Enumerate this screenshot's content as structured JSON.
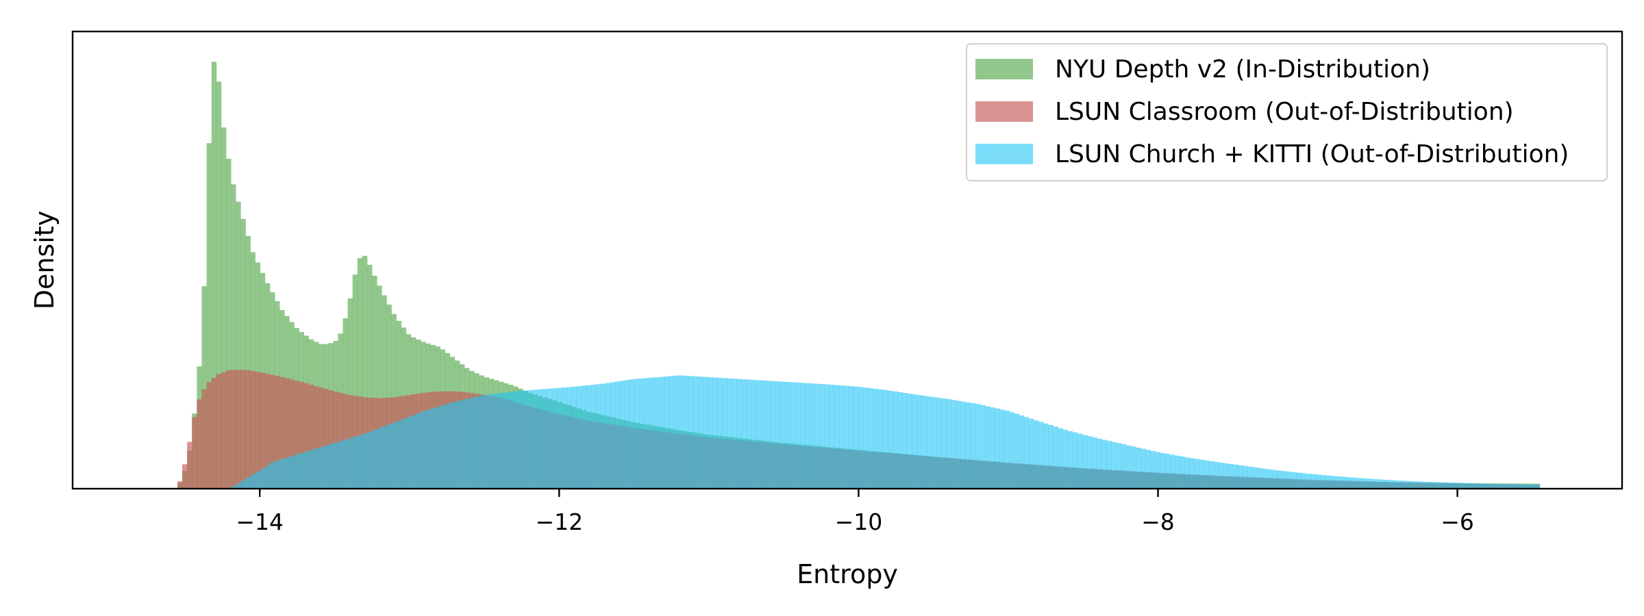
{
  "chart_data": {
    "type": "histogram",
    "title": "",
    "xlabel": "Entropy",
    "ylabel": "Density",
    "xlim": [
      -15.25,
      -4.9
    ],
    "ylim": [
      0,
      1.0
    ],
    "y_ticks_shown": false,
    "grid": false,
    "legend_placement": "top-right",
    "xticks": [
      -14,
      -12,
      -10,
      -8,
      -6
    ],
    "xtick_labels": [
      "−14",
      "−12",
      "−10",
      "−8",
      "−6"
    ],
    "bin_range": [
      -14.55,
      -5.45
    ],
    "series": [
      {
        "name": "NYU Depth v2 (In-Distribution)",
        "color": "#5aaa50",
        "opacity": 0.66,
        "density_curve": [
          [
            -14.55,
            0.0
          ],
          [
            -14.5,
            0.04
          ],
          [
            -14.47,
            0.08
          ],
          [
            -14.43,
            0.18
          ],
          [
            -14.4,
            0.28
          ],
          [
            -14.37,
            0.45
          ],
          [
            -14.35,
            0.66
          ],
          [
            -14.33,
            0.83
          ],
          [
            -14.31,
            0.93
          ],
          [
            -14.29,
            0.95
          ],
          [
            -14.26,
            0.84
          ],
          [
            -14.23,
            0.76
          ],
          [
            -14.18,
            0.67
          ],
          [
            -14.12,
            0.6
          ],
          [
            -14.05,
            0.52
          ],
          [
            -13.95,
            0.45
          ],
          [
            -13.85,
            0.39
          ],
          [
            -13.75,
            0.35
          ],
          [
            -13.65,
            0.325
          ],
          [
            -13.58,
            0.315
          ],
          [
            -13.5,
            0.32
          ],
          [
            -13.45,
            0.345
          ],
          [
            -13.4,
            0.41
          ],
          [
            -13.37,
            0.46
          ],
          [
            -13.34,
            0.5
          ],
          [
            -13.31,
            0.515
          ],
          [
            -13.28,
            0.5
          ],
          [
            -13.24,
            0.47
          ],
          [
            -13.18,
            0.43
          ],
          [
            -13.1,
            0.38
          ],
          [
            -13.0,
            0.335
          ],
          [
            -12.9,
            0.32
          ],
          [
            -12.8,
            0.31
          ],
          [
            -12.7,
            0.285
          ],
          [
            -12.6,
            0.26
          ],
          [
            -12.5,
            0.245
          ],
          [
            -12.4,
            0.235
          ],
          [
            -12.3,
            0.225
          ],
          [
            -12.2,
            0.21
          ],
          [
            -12.1,
            0.2
          ],
          [
            -12.0,
            0.19
          ],
          [
            -11.8,
            0.168
          ],
          [
            -11.5,
            0.145
          ],
          [
            -11.2,
            0.128
          ],
          [
            -11.0,
            0.118
          ],
          [
            -10.5,
            0.1
          ],
          [
            -10.0,
            0.085
          ],
          [
            -9.5,
            0.07
          ],
          [
            -9.0,
            0.055
          ],
          [
            -8.5,
            0.043
          ],
          [
            -8.0,
            0.033
          ],
          [
            -7.5,
            0.025
          ],
          [
            -7.0,
            0.018
          ],
          [
            -6.5,
            0.014
          ],
          [
            -6.0,
            0.012
          ],
          [
            -5.45,
            0.011
          ]
        ]
      },
      {
        "name": "LSUN Classroom (Out-of-Distribution)",
        "color": "#c85a5a",
        "opacity": 0.66,
        "density_curve": [
          [
            -14.55,
            0.0
          ],
          [
            -14.52,
            0.03
          ],
          [
            -14.48,
            0.08
          ],
          [
            -14.45,
            0.14
          ],
          [
            -14.4,
            0.2
          ],
          [
            -14.35,
            0.23
          ],
          [
            -14.28,
            0.25
          ],
          [
            -14.2,
            0.26
          ],
          [
            -14.1,
            0.26
          ],
          [
            -14.0,
            0.255
          ],
          [
            -13.9,
            0.248
          ],
          [
            -13.8,
            0.24
          ],
          [
            -13.7,
            0.232
          ],
          [
            -13.6,
            0.222
          ],
          [
            -13.5,
            0.213
          ],
          [
            -13.4,
            0.205
          ],
          [
            -13.3,
            0.2
          ],
          [
            -13.2,
            0.198
          ],
          [
            -13.1,
            0.2
          ],
          [
            -13.0,
            0.205
          ],
          [
            -12.9,
            0.21
          ],
          [
            -12.8,
            0.213
          ],
          [
            -12.7,
            0.213
          ],
          [
            -12.6,
            0.21
          ],
          [
            -12.5,
            0.205
          ],
          [
            -12.4,
            0.2
          ],
          [
            -12.3,
            0.19
          ],
          [
            -12.2,
            0.18
          ],
          [
            -12.0,
            0.163
          ],
          [
            -11.8,
            0.148
          ],
          [
            -11.5,
            0.133
          ],
          [
            -11.2,
            0.12
          ],
          [
            -11.0,
            0.112
          ],
          [
            -10.5,
            0.097
          ],
          [
            -10.0,
            0.083
          ],
          [
            -9.5,
            0.07
          ],
          [
            -9.0,
            0.057
          ],
          [
            -8.5,
            0.045
          ],
          [
            -8.0,
            0.035
          ],
          [
            -7.5,
            0.027
          ],
          [
            -7.0,
            0.02
          ],
          [
            -6.5,
            0.015
          ],
          [
            -6.0,
            0.011
          ],
          [
            -5.45,
            0.008
          ]
        ]
      },
      {
        "name": "LSUN Church + KITTI (Out-of-Distribution)",
        "color": "#22c4f5",
        "opacity": 0.6,
        "density_curve": [
          [
            -14.2,
            0.0
          ],
          [
            -14.1,
            0.02
          ],
          [
            -14.0,
            0.04
          ],
          [
            -13.9,
            0.06
          ],
          [
            -13.7,
            0.08
          ],
          [
            -13.5,
            0.1
          ],
          [
            -13.3,
            0.12
          ],
          [
            -13.1,
            0.145
          ],
          [
            -12.9,
            0.17
          ],
          [
            -12.7,
            0.19
          ],
          [
            -12.5,
            0.205
          ],
          [
            -12.3,
            0.213
          ],
          [
            -12.1,
            0.218
          ],
          [
            -11.9,
            0.223
          ],
          [
            -11.7,
            0.23
          ],
          [
            -11.5,
            0.24
          ],
          [
            -11.3,
            0.245
          ],
          [
            -11.2,
            0.248
          ],
          [
            -11.0,
            0.244
          ],
          [
            -10.8,
            0.24
          ],
          [
            -10.6,
            0.236
          ],
          [
            -10.4,
            0.232
          ],
          [
            -10.2,
            0.228
          ],
          [
            -10.0,
            0.223
          ],
          [
            -9.8,
            0.215
          ],
          [
            -9.6,
            0.205
          ],
          [
            -9.4,
            0.196
          ],
          [
            -9.2,
            0.185
          ],
          [
            -9.0,
            0.17
          ],
          [
            -8.8,
            0.148
          ],
          [
            -8.6,
            0.127
          ],
          [
            -8.4,
            0.11
          ],
          [
            -8.2,
            0.095
          ],
          [
            -8.0,
            0.08
          ],
          [
            -7.8,
            0.068
          ],
          [
            -7.6,
            0.058
          ],
          [
            -7.4,
            0.049
          ],
          [
            -7.2,
            0.04
          ],
          [
            -7.0,
            0.033
          ],
          [
            -6.8,
            0.027
          ],
          [
            -6.6,
            0.022
          ],
          [
            -6.4,
            0.018
          ],
          [
            -6.2,
            0.015
          ],
          [
            -6.0,
            0.013
          ],
          [
            -5.8,
            0.011
          ],
          [
            -5.45,
            0.009
          ]
        ]
      }
    ]
  }
}
